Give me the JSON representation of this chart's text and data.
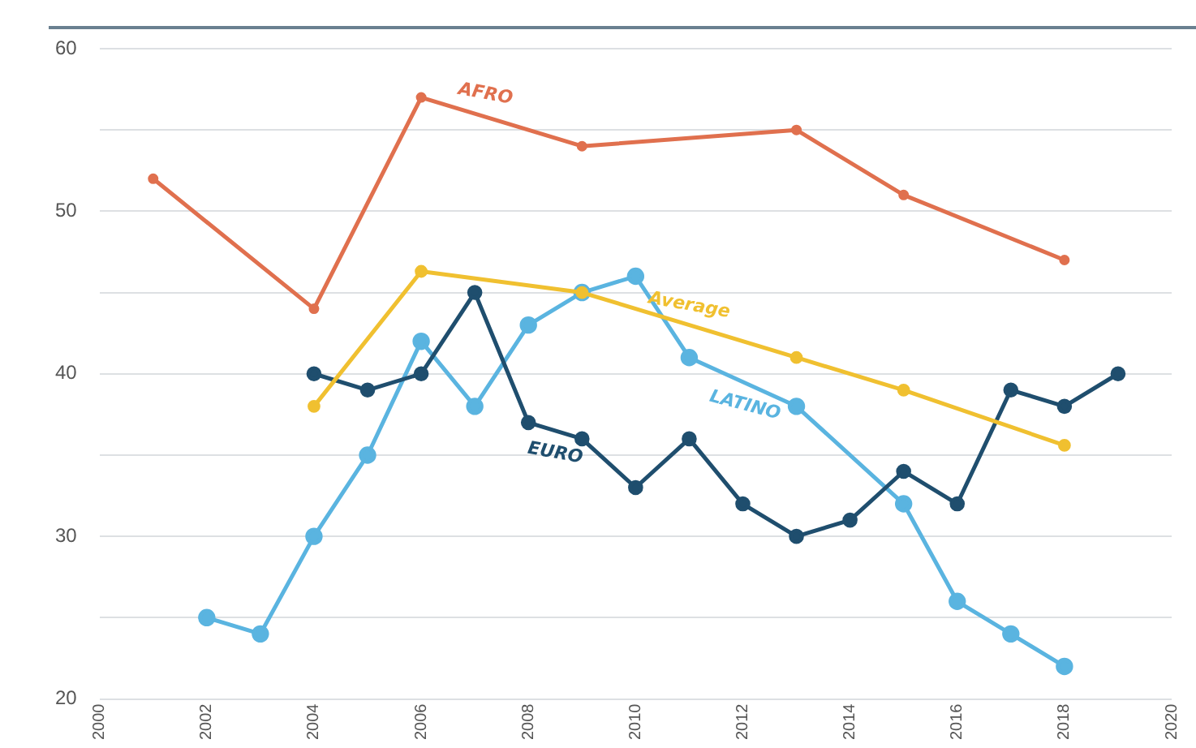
{
  "chart_data": {
    "type": "line",
    "xlim": [
      2000,
      2020
    ],
    "xticks": [
      2000,
      2002,
      2004,
      2006,
      2008,
      2010,
      2012,
      2014,
      2016,
      2018,
      2020
    ],
    "ylim": [
      20,
      60
    ],
    "yticks": [
      20,
      {
        "value": 25,
        "label": null
      },
      30,
      {
        "value": 35,
        "label": null
      },
      40,
      {
        "value": 45,
        "label": null
      },
      50,
      {
        "value": 55,
        "label": null
      },
      60
    ],
    "grid": "y",
    "legend": false,
    "marker": "circle",
    "line_style": "solid",
    "series": [
      {
        "name": "AFRO",
        "color": "#e0704e",
        "x": [
          2001,
          2004,
          2006,
          2009,
          2013,
          2015,
          2018
        ],
        "values": [
          52,
          44,
          57,
          54,
          55,
          51,
          47
        ]
      },
      {
        "name": "Average",
        "color": "#f0c030",
        "x": [
          2004,
          2006,
          2009,
          2013,
          2015,
          2018
        ],
        "values": [
          38,
          46.3,
          45,
          41,
          39,
          35.6
        ]
      },
      {
        "name": "EURO",
        "color": "#1f4e6e",
        "x": [
          2004,
          2005,
          2006,
          2007,
          2008,
          2009,
          2010,
          2011,
          2012,
          2013,
          2014,
          2015,
          2016,
          2017,
          2018,
          2019
        ],
        "values": [
          40,
          39,
          40,
          45,
          37,
          36,
          33,
          36,
          32,
          30,
          31,
          34,
          32,
          39,
          38,
          40
        ]
      },
      {
        "name": "LATINO",
        "color": "#5ab4e0",
        "x": [
          2002,
          2003,
          2004,
          2005,
          2006,
          2007,
          2008,
          2009,
          2010,
          2011,
          2013,
          2015,
          2016,
          2017,
          2018
        ],
        "values": [
          25,
          24,
          30,
          35,
          42,
          38,
          43,
          45,
          46,
          41,
          38,
          32,
          26,
          24,
          22
        ]
      }
    ]
  }
}
